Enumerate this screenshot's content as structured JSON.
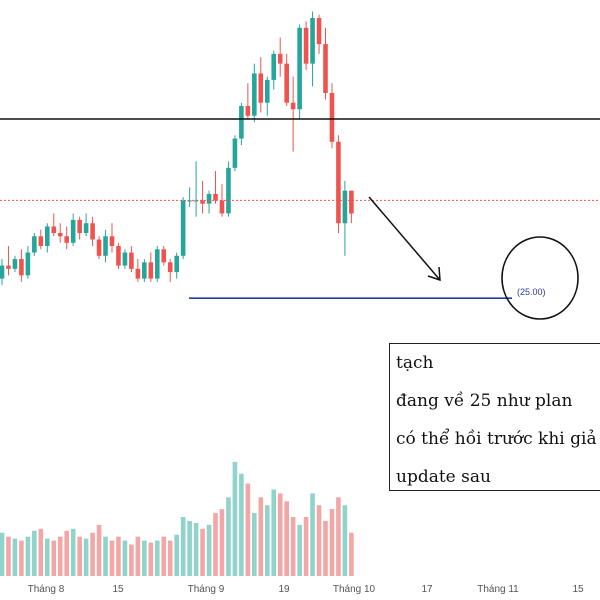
{
  "chart_data": {
    "type": "candlestick",
    "title": "",
    "xlabel": "",
    "ylabel": "",
    "x_ticks": [
      "Tháng 8",
      "15",
      "Tháng 9",
      "19",
      "Tháng 10",
      "17",
      "Tháng 11",
      "15"
    ],
    "resistance_line": 30.5,
    "last_price_line": 28.0,
    "target_level": 25.0,
    "target_label": "(25.00)",
    "ylim": [
      23.5,
      34.0
    ],
    "colors": {
      "up": "#26a69a",
      "down": "#ef5350",
      "volume_up": "#8fd3ca",
      "volume_down": "#f2a7a6",
      "target_line": "#2a3a9e",
      "resistance": "#111111",
      "last_price": "#ef5350"
    },
    "candles": [
      [
        25.6,
        26.2,
        25.4,
        26.0
      ],
      [
        26.0,
        26.6,
        25.7,
        25.9
      ],
      [
        25.9,
        26.3,
        25.8,
        26.2
      ],
      [
        26.2,
        26.5,
        25.5,
        25.7
      ],
      [
        25.7,
        26.6,
        25.6,
        26.4
      ],
      [
        26.4,
        27.0,
        26.3,
        26.9
      ],
      [
        26.9,
        27.1,
        26.5,
        26.6
      ],
      [
        26.6,
        27.3,
        26.4,
        27.2
      ],
      [
        27.2,
        27.6,
        26.9,
        27.0
      ],
      [
        27.0,
        27.3,
        26.7,
        26.9
      ],
      [
        26.9,
        27.2,
        26.5,
        26.7
      ],
      [
        26.7,
        27.6,
        26.6,
        27.4
      ],
      [
        27.4,
        27.5,
        26.8,
        27.0
      ],
      [
        27.0,
        27.6,
        26.9,
        27.3
      ],
      [
        27.3,
        27.5,
        26.6,
        26.8
      ],
      [
        26.8,
        26.9,
        26.2,
        26.3
      ],
      [
        26.3,
        27.1,
        26.1,
        26.9
      ],
      [
        26.9,
        27.3,
        26.4,
        26.6
      ],
      [
        26.6,
        26.7,
        25.9,
        26.0
      ],
      [
        26.0,
        26.5,
        25.9,
        26.4
      ],
      [
        26.4,
        26.6,
        25.8,
        25.9
      ],
      [
        25.9,
        26.2,
        25.5,
        25.6
      ],
      [
        25.6,
        26.2,
        25.5,
        26.1
      ],
      [
        26.1,
        26.4,
        25.5,
        25.6
      ],
      [
        25.6,
        26.6,
        25.5,
        26.5
      ],
      [
        26.5,
        26.6,
        26.0,
        26.1
      ],
      [
        26.1,
        26.2,
        25.5,
        25.8
      ],
      [
        25.8,
        26.4,
        25.6,
        26.3
      ],
      [
        26.3,
        28.1,
        26.2,
        28.0
      ],
      [
        28.0,
        28.4,
        27.8,
        28.0
      ],
      [
        28.0,
        29.2,
        27.5,
        28.0
      ],
      [
        28.0,
        28.6,
        27.6,
        27.9
      ],
      [
        27.9,
        28.3,
        27.6,
        28.2
      ],
      [
        28.2,
        28.9,
        27.9,
        28.0
      ],
      [
        28.0,
        28.5,
        27.5,
        27.6
      ],
      [
        27.6,
        29.2,
        27.5,
        29.0
      ],
      [
        29.0,
        30.0,
        28.9,
        29.9
      ],
      [
        29.9,
        31.0,
        29.7,
        30.9
      ],
      [
        30.9,
        31.6,
        30.5,
        30.6
      ],
      [
        30.6,
        32.2,
        30.4,
        31.9
      ],
      [
        31.9,
        32.4,
        30.7,
        31.0
      ],
      [
        31.0,
        31.8,
        30.6,
        31.7
      ],
      [
        31.7,
        32.6,
        31.4,
        32.5
      ],
      [
        32.5,
        33.0,
        31.8,
        32.2
      ],
      [
        32.2,
        32.5,
        30.9,
        31.0
      ],
      [
        31.0,
        31.8,
        29.5,
        30.8
      ],
      [
        30.8,
        33.4,
        30.5,
        33.3
      ],
      [
        33.3,
        33.5,
        32.0,
        32.2
      ],
      [
        32.2,
        33.8,
        31.5,
        33.6
      ],
      [
        33.6,
        33.7,
        32.5,
        32.8
      ],
      [
        32.8,
        33.3,
        31.1,
        31.3
      ],
      [
        31.3,
        31.6,
        29.6,
        29.8
      ],
      [
        29.8,
        30.0,
        27.0,
        27.3
      ],
      [
        27.3,
        28.6,
        26.3,
        28.3
      ],
      [
        28.3,
        28.3,
        27.3,
        27.6
      ]
    ],
    "volumes": [
      22,
      20,
      19,
      18,
      20,
      23,
      24,
      19,
      18,
      20,
      23,
      24,
      20,
      19,
      22,
      26,
      20,
      18,
      20,
      18,
      16,
      20,
      18,
      17,
      18,
      20,
      18,
      21,
      30,
      28,
      27,
      24,
      26,
      32,
      34,
      40,
      58,
      52,
      47,
      32,
      40,
      36,
      44,
      42,
      38,
      30,
      26,
      30,
      42,
      36,
      28,
      34,
      40,
      36,
      22
    ]
  },
  "annotations": {
    "note_lines": [
      "tạch",
      "đang về 25 như plan",
      "có thể hồi trước khi giả",
      "update sau"
    ]
  }
}
